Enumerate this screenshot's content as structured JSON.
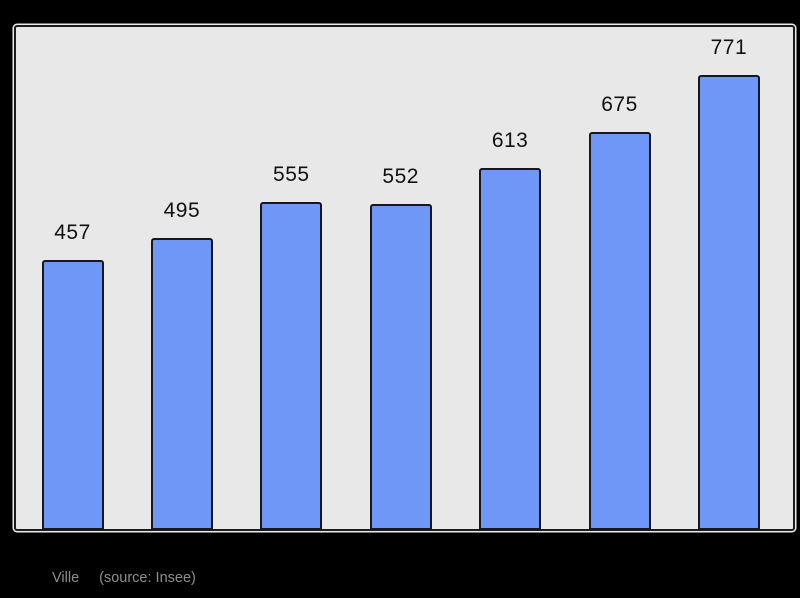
{
  "chart_data": {
    "type": "bar",
    "values": [
      457,
      495,
      555,
      552,
      613,
      675,
      771
    ],
    "data_labels": [
      "457",
      "495",
      "555",
      "552",
      "613",
      "675",
      "771"
    ],
    "categories": [],
    "title": "",
    "xlabel": "",
    "ylabel": "",
    "ylim": [
      0,
      847
    ],
    "grid": false,
    "legend_position": "none",
    "bar_color": "#6e97f7",
    "bar_border_color": "#16181d",
    "plot_background": "#e8e8e8",
    "plot_border_color": "#1c1c1c",
    "outer_background": "#000000",
    "label_color": "#111111",
    "caption": {
      "label": "Ville",
      "source": "(source: Insee)",
      "color": "#8f8f8f"
    }
  }
}
